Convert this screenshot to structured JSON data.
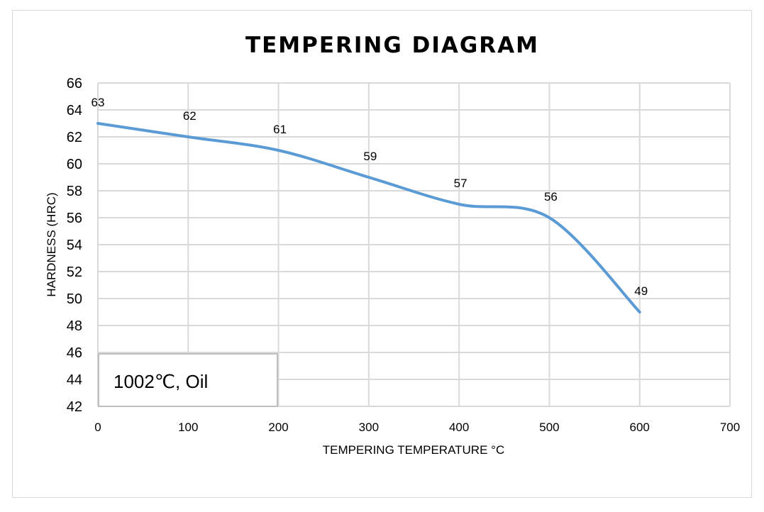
{
  "chart_data": {
    "type": "line",
    "title": "TEMPERING DIAGRAM",
    "xlabel": "TEMPERING TEMPERATURE °C",
    "ylabel": "HARDNESS (HRC)",
    "xlim": [
      0,
      700
    ],
    "ylim": [
      42,
      66
    ],
    "xticks": [
      0,
      100,
      200,
      300,
      400,
      500,
      600,
      700
    ],
    "yticks": [
      42,
      44,
      46,
      48,
      50,
      52,
      54,
      56,
      58,
      60,
      62,
      64,
      66
    ],
    "grid": true,
    "smooth": true,
    "series": [
      {
        "name": "Hardness",
        "color": "#5b9bd5",
        "x": [
          0,
          100,
          200,
          300,
          400,
          500,
          600
        ],
        "y": [
          63,
          62,
          61,
          59,
          57,
          56,
          49
        ]
      }
    ],
    "annotation": "1002℃, Oil"
  }
}
